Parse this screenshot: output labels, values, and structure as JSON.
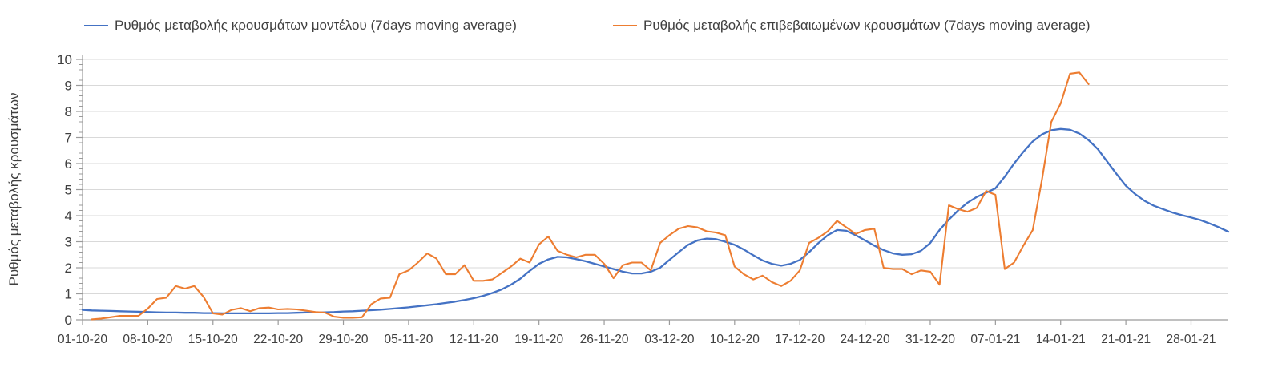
{
  "page": {
    "background": "#ffffff"
  },
  "chart_data": {
    "type": "line",
    "title": "",
    "ylabel": "Ρυθμός μεταβολής κρουσμάτων",
    "xlabel": "",
    "ylim": [
      0,
      10
    ],
    "yticks": [
      0,
      1,
      2,
      3,
      4,
      5,
      6,
      7,
      8,
      9,
      10
    ],
    "y_minor_tick_step": 0.2,
    "grid": "horizontal",
    "legend_position": "top",
    "x_axis": {
      "unit": "date (dd-mm-yy), one data point per day",
      "start_date": "01-10-20",
      "days_total": 123,
      "tick_day_offsets": [
        0,
        7,
        14,
        21,
        28,
        35,
        42,
        49,
        56,
        63,
        70,
        77,
        84,
        91,
        98,
        105,
        112,
        119
      ],
      "tick_labels": [
        "01-10-20",
        "08-10-20",
        "15-10-20",
        "22-10-20",
        "29-10-20",
        "05-11-20",
        "12-11-20",
        "19-11-20",
        "26-11-20",
        "03-12-20",
        "10-12-20",
        "17-12-20",
        "24-12-20",
        "31-12-20",
        "07-01-21",
        "14-01-21",
        "21-01-21",
        "28-01-21"
      ]
    },
    "series": [
      {
        "name": "Ρυθμός μεταβολής κρουσμάτων μοντέλου (7days moving average)",
        "color": "#4472C4",
        "x0_day": 0,
        "dx_days": 1,
        "values": [
          0.38,
          0.36,
          0.35,
          0.34,
          0.33,
          0.32,
          0.31,
          0.3,
          0.29,
          0.28,
          0.28,
          0.27,
          0.27,
          0.26,
          0.26,
          0.25,
          0.25,
          0.25,
          0.25,
          0.25,
          0.25,
          0.26,
          0.26,
          0.27,
          0.28,
          0.28,
          0.29,
          0.3,
          0.32,
          0.33,
          0.35,
          0.37,
          0.39,
          0.42,
          0.45,
          0.48,
          0.52,
          0.56,
          0.6,
          0.65,
          0.7,
          0.76,
          0.83,
          0.92,
          1.03,
          1.17,
          1.35,
          1.58,
          1.88,
          2.15,
          2.32,
          2.42,
          2.4,
          2.33,
          2.25,
          2.15,
          2.05,
          1.95,
          1.85,
          1.78,
          1.78,
          1.85,
          2.0,
          2.3,
          2.6,
          2.88,
          3.05,
          3.12,
          3.1,
          3.0,
          2.88,
          2.7,
          2.48,
          2.28,
          2.15,
          2.08,
          2.15,
          2.3,
          2.6,
          2.95,
          3.25,
          3.45,
          3.42,
          3.25,
          3.05,
          2.85,
          2.68,
          2.55,
          2.5,
          2.52,
          2.65,
          2.95,
          3.45,
          3.85,
          4.2,
          4.5,
          4.72,
          4.88,
          5.05,
          5.5,
          6.0,
          6.45,
          6.85,
          7.12,
          7.28,
          7.33,
          7.3,
          7.15,
          6.9,
          6.55,
          6.07,
          5.6,
          5.15,
          4.83,
          4.57,
          4.38,
          4.25,
          4.12,
          4.02,
          3.93,
          3.83,
          3.7,
          3.55,
          3.38
        ]
      },
      {
        "name": "Ρυθμός μεταβολής επιβεβαιωμένων κρουσμάτων (7days moving average)",
        "color": "#ED7D31",
        "x0_day": 1,
        "dx_days": 1,
        "values": [
          0.02,
          0.05,
          0.1,
          0.15,
          0.15,
          0.15,
          0.43,
          0.8,
          0.85,
          1.3,
          1.2,
          1.3,
          0.88,
          0.25,
          0.2,
          0.38,
          0.45,
          0.33,
          0.45,
          0.47,
          0.4,
          0.42,
          0.4,
          0.35,
          0.3,
          0.28,
          0.12,
          0.08,
          0.08,
          0.1,
          0.6,
          0.82,
          0.85,
          1.75,
          1.9,
          2.2,
          2.55,
          2.35,
          1.75,
          1.75,
          2.1,
          1.5,
          1.5,
          1.55,
          1.8,
          2.05,
          2.35,
          2.2,
          2.9,
          3.2,
          2.65,
          2.5,
          2.4,
          2.5,
          2.5,
          2.15,
          1.6,
          2.1,
          2.2,
          2.2,
          1.9,
          2.95,
          3.25,
          3.5,
          3.6,
          3.55,
          3.4,
          3.35,
          3.25,
          2.05,
          1.75,
          1.55,
          1.7,
          1.45,
          1.3,
          1.5,
          1.9,
          2.95,
          3.15,
          3.4,
          3.8,
          3.55,
          3.3,
          3.45,
          3.5,
          2.0,
          1.95,
          1.95,
          1.75,
          1.9,
          1.85,
          1.35,
          4.4,
          4.25,
          4.15,
          4.3,
          4.95,
          4.8,
          1.95,
          2.2,
          2.85,
          3.45,
          5.4,
          7.6,
          8.3,
          9.45,
          9.5,
          9.05
        ]
      }
    ],
    "colors": {
      "grid": "#d9d9d9",
      "axis": "#9b9b9b",
      "tick": "#9b9b9b",
      "text": "#3f3f3f"
    }
  }
}
